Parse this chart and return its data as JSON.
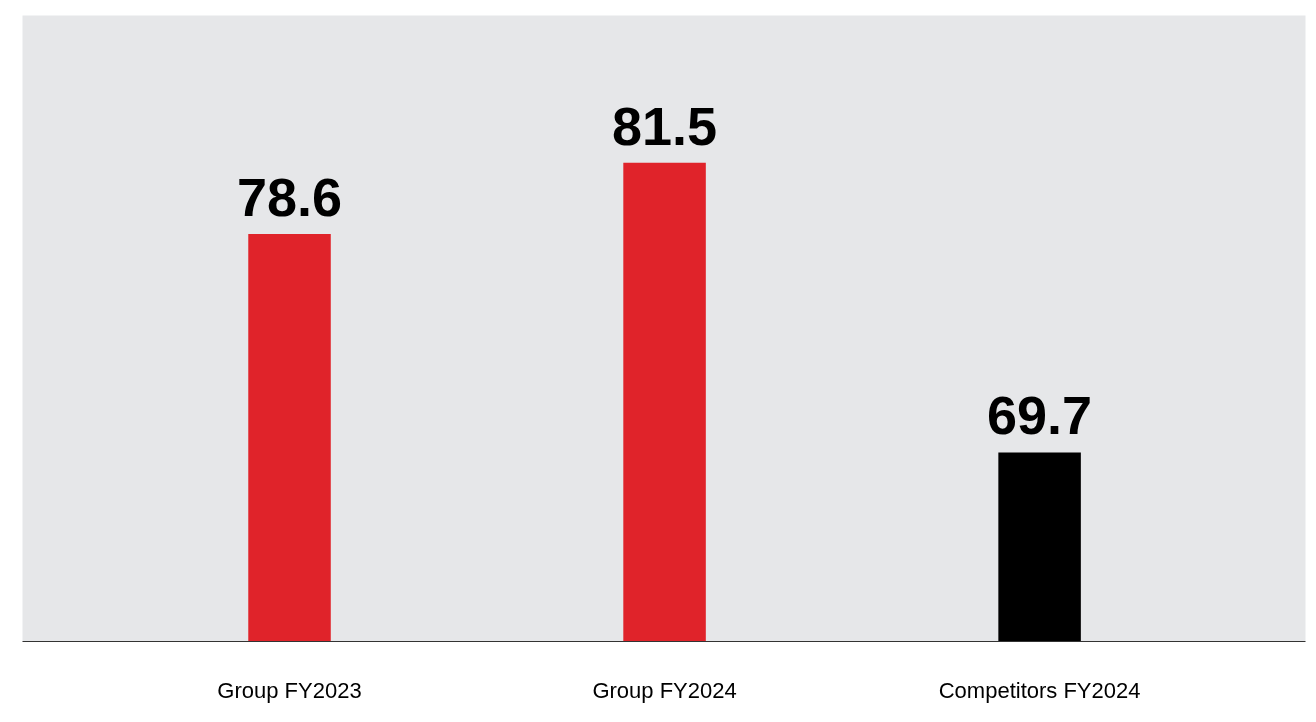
{
  "chart_data": {
    "type": "bar",
    "categories": [
      "Group FY2023",
      "Group FY2024",
      "Competitors FY2024"
    ],
    "values": [
      78.6,
      81.5,
      69.7
    ],
    "colors": [
      "#e0232a",
      "#e0232a",
      "#000000"
    ],
    "ylim": [
      62,
      87.5
    ],
    "tick_labels": "x",
    "data_labels": true
  }
}
